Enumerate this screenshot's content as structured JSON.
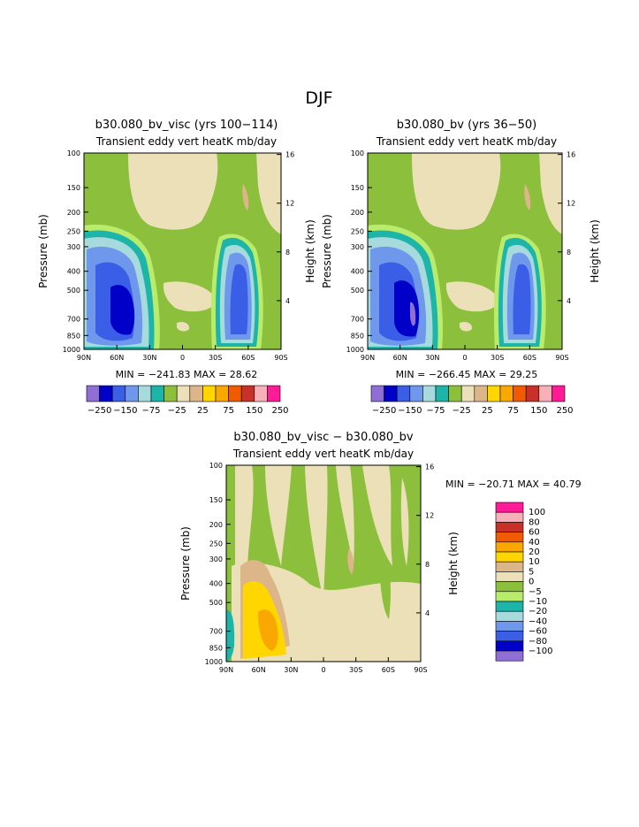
{
  "page_title": "DJF",
  "colors": {
    "ramp12": [
      "#8f6fd6",
      "#0000c8",
      "#3a5ee6",
      "#6f98ec",
      "#a7dadd",
      "#1db5a9",
      "#8cbf3c",
      "#ece0b8",
      "#dcb688",
      "#ffd600",
      "#f8a800",
      "#f05a00",
      "#c8302a",
      "#f8b0b8",
      "#ff1a98"
    ],
    "diff_ramp": [
      "#8f6fd6",
      "#0000c8",
      "#3a5ee6",
      "#6f98ec",
      "#a7dadd",
      "#1db5a9",
      "#b8ec6a",
      "#8cbf3c",
      "#ece0b8",
      "#dcb688",
      "#ffd600",
      "#f8a800",
      "#f05a00",
      "#c8302a",
      "#f8b0b8",
      "#ff1a98"
    ]
  },
  "chart_data": [
    {
      "type": "heatmap",
      "id": "panel_a",
      "title": "b30.080_bv_visc (yrs 100−114)",
      "subtitle": "Transient eddy vert heatK mb/day",
      "xlabel": "",
      "ylabel": "Pressure (mb)",
      "y2label": "Height (km)",
      "x_ticks": [
        "90N",
        "60N",
        "30N",
        "0",
        "30S",
        "60S",
        "90S"
      ],
      "y_ticks": [
        "100",
        "150",
        "200",
        "250",
        "300",
        "400",
        "500",
        "700",
        "850",
        "1000"
      ],
      "y2_ticks": [
        "16",
        "12",
        "8",
        "4"
      ],
      "stats": "MIN = −241.83   MAX =  28.62",
      "legend_labels": [
        "−250",
        "−150",
        "−75",
        "−25",
        "25",
        "75",
        "150",
        "250"
      ],
      "min": -241.83,
      "max": 28.62
    },
    {
      "type": "heatmap",
      "id": "panel_b",
      "title": "b30.080_bv (yrs 36−50)",
      "subtitle": "Transient eddy vert heatK mb/day",
      "xlabel": "",
      "ylabel": "Pressure (mb)",
      "y2label": "Height (km)",
      "x_ticks": [
        "90N",
        "60N",
        "30N",
        "0",
        "30S",
        "60S",
        "90S"
      ],
      "y_ticks": [
        "100",
        "150",
        "200",
        "250",
        "300",
        "400",
        "500",
        "700",
        "850",
        "1000"
      ],
      "y2_ticks": [
        "16",
        "12",
        "8",
        "4"
      ],
      "stats": "MIN = −266.45   MAX =  29.25",
      "legend_labels": [
        "−250",
        "−150",
        "−75",
        "−25",
        "25",
        "75",
        "150",
        "250"
      ],
      "min": -266.45,
      "max": 29.25
    },
    {
      "type": "heatmap",
      "id": "panel_diff",
      "title": "b30.080_bv_visc − b30.080_bv",
      "subtitle": "Transient eddy vert heatK mb/day",
      "xlabel": "",
      "ylabel": "Pressure (mb)",
      "y2label": "Height (km)",
      "x_ticks": [
        "90N",
        "60N",
        "30N",
        "0",
        "30S",
        "60S",
        "90S"
      ],
      "y_ticks": [
        "100",
        "150",
        "200",
        "250",
        "300",
        "400",
        "500",
        "700",
        "850",
        "1000"
      ],
      "y2_ticks": [
        "16",
        "12",
        "8",
        "4"
      ],
      "stats": "MIN = −20.71   MAX =  40.79",
      "legend_labels": [
        "100",
        "80",
        "60",
        "40",
        "20",
        "10",
        "5",
        "0",
        "−5",
        "−10",
        "−20",
        "−40",
        "−60",
        "−80",
        "−100"
      ],
      "min": -20.71,
      "max": 40.79
    }
  ]
}
